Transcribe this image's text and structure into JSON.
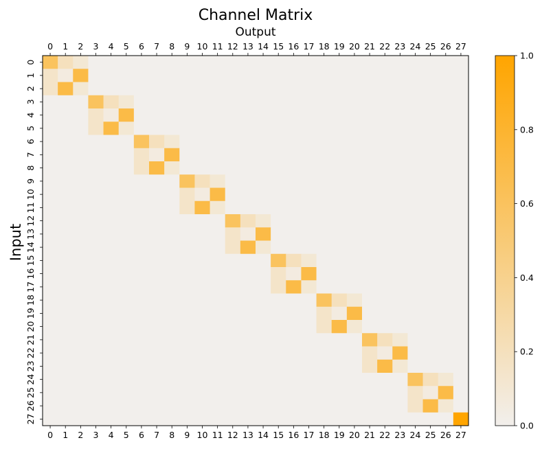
{
  "chart_data": {
    "type": "heatmap",
    "title": "Channel Matrix",
    "xlabel": "Output",
    "ylabel": "Input",
    "x_categories": [
      "0",
      "1",
      "2",
      "3",
      "4",
      "5",
      "6",
      "7",
      "8",
      "9",
      "10",
      "11",
      "12",
      "13",
      "14",
      "15",
      "16",
      "17",
      "18",
      "19",
      "20",
      "21",
      "22",
      "23",
      "24",
      "25",
      "26",
      "27"
    ],
    "y_categories": [
      "0",
      "1",
      "2",
      "3",
      "4",
      "5",
      "6",
      "7",
      "8",
      "9",
      "10",
      "11",
      "12",
      "13",
      "14",
      "15",
      "16",
      "17",
      "18",
      "19",
      "20",
      "21",
      "22",
      "23",
      "24",
      "25",
      "26",
      "27"
    ],
    "x_ticks_position": "top and bottom",
    "values": [
      [
        0.6,
        0.2,
        0.1,
        0,
        0,
        0,
        0,
        0,
        0,
        0,
        0,
        0,
        0,
        0,
        0,
        0,
        0,
        0,
        0,
        0,
        0,
        0,
        0,
        0,
        0,
        0,
        0,
        0
      ],
      [
        0.15,
        0.05,
        0.7,
        0,
        0,
        0,
        0,
        0,
        0,
        0,
        0,
        0,
        0,
        0,
        0,
        0,
        0,
        0,
        0,
        0,
        0,
        0,
        0,
        0,
        0,
        0,
        0,
        0
      ],
      [
        0.15,
        0.7,
        0.1,
        0,
        0,
        0,
        0,
        0,
        0,
        0,
        0,
        0,
        0,
        0,
        0,
        0,
        0,
        0,
        0,
        0,
        0,
        0,
        0,
        0,
        0,
        0,
        0,
        0
      ],
      [
        0,
        0,
        0,
        0.6,
        0.2,
        0.1,
        0,
        0,
        0,
        0,
        0,
        0,
        0,
        0,
        0,
        0,
        0,
        0,
        0,
        0,
        0,
        0,
        0,
        0,
        0,
        0,
        0,
        0
      ],
      [
        0,
        0,
        0,
        0.15,
        0.05,
        0.7,
        0,
        0,
        0,
        0,
        0,
        0,
        0,
        0,
        0,
        0,
        0,
        0,
        0,
        0,
        0,
        0,
        0,
        0,
        0,
        0,
        0,
        0
      ],
      [
        0,
        0,
        0,
        0.15,
        0.7,
        0.1,
        0,
        0,
        0,
        0,
        0,
        0,
        0,
        0,
        0,
        0,
        0,
        0,
        0,
        0,
        0,
        0,
        0,
        0,
        0,
        0,
        0,
        0
      ],
      [
        0,
        0,
        0,
        0,
        0,
        0,
        0.6,
        0.2,
        0.1,
        0,
        0,
        0,
        0,
        0,
        0,
        0,
        0,
        0,
        0,
        0,
        0,
        0,
        0,
        0,
        0,
        0,
        0,
        0
      ],
      [
        0,
        0,
        0,
        0,
        0,
        0,
        0.15,
        0.05,
        0.7,
        0,
        0,
        0,
        0,
        0,
        0,
        0,
        0,
        0,
        0,
        0,
        0,
        0,
        0,
        0,
        0,
        0,
        0,
        0
      ],
      [
        0,
        0,
        0,
        0,
        0,
        0,
        0.15,
        0.7,
        0.1,
        0,
        0,
        0,
        0,
        0,
        0,
        0,
        0,
        0,
        0,
        0,
        0,
        0,
        0,
        0,
        0,
        0,
        0,
        0
      ],
      [
        0,
        0,
        0,
        0,
        0,
        0,
        0,
        0,
        0,
        0.6,
        0.2,
        0.1,
        0,
        0,
        0,
        0,
        0,
        0,
        0,
        0,
        0,
        0,
        0,
        0,
        0,
        0,
        0,
        0
      ],
      [
        0,
        0,
        0,
        0,
        0,
        0,
        0,
        0,
        0,
        0.15,
        0.05,
        0.7,
        0,
        0,
        0,
        0,
        0,
        0,
        0,
        0,
        0,
        0,
        0,
        0,
        0,
        0,
        0,
        0
      ],
      [
        0,
        0,
        0,
        0,
        0,
        0,
        0,
        0,
        0,
        0.15,
        0.7,
        0.1,
        0,
        0,
        0,
        0,
        0,
        0,
        0,
        0,
        0,
        0,
        0,
        0,
        0,
        0,
        0,
        0
      ],
      [
        0,
        0,
        0,
        0,
        0,
        0,
        0,
        0,
        0,
        0,
        0,
        0,
        0.6,
        0.2,
        0.1,
        0,
        0,
        0,
        0,
        0,
        0,
        0,
        0,
        0,
        0,
        0,
        0,
        0
      ],
      [
        0,
        0,
        0,
        0,
        0,
        0,
        0,
        0,
        0,
        0,
        0,
        0,
        0.15,
        0.05,
        0.7,
        0,
        0,
        0,
        0,
        0,
        0,
        0,
        0,
        0,
        0,
        0,
        0,
        0
      ],
      [
        0,
        0,
        0,
        0,
        0,
        0,
        0,
        0,
        0,
        0,
        0,
        0,
        0.15,
        0.7,
        0.1,
        0,
        0,
        0,
        0,
        0,
        0,
        0,
        0,
        0,
        0,
        0,
        0,
        0
      ],
      [
        0,
        0,
        0,
        0,
        0,
        0,
        0,
        0,
        0,
        0,
        0,
        0,
        0,
        0,
        0,
        0.6,
        0.2,
        0.1,
        0,
        0,
        0,
        0,
        0,
        0,
        0,
        0,
        0,
        0
      ],
      [
        0,
        0,
        0,
        0,
        0,
        0,
        0,
        0,
        0,
        0,
        0,
        0,
        0,
        0,
        0,
        0.15,
        0.05,
        0.7,
        0,
        0,
        0,
        0,
        0,
        0,
        0,
        0,
        0,
        0
      ],
      [
        0,
        0,
        0,
        0,
        0,
        0,
        0,
        0,
        0,
        0,
        0,
        0,
        0,
        0,
        0,
        0.15,
        0.7,
        0.1,
        0,
        0,
        0,
        0,
        0,
        0,
        0,
        0,
        0,
        0
      ],
      [
        0,
        0,
        0,
        0,
        0,
        0,
        0,
        0,
        0,
        0,
        0,
        0,
        0,
        0,
        0,
        0,
        0,
        0,
        0.6,
        0.2,
        0.1,
        0,
        0,
        0,
        0,
        0,
        0,
        0
      ],
      [
        0,
        0,
        0,
        0,
        0,
        0,
        0,
        0,
        0,
        0,
        0,
        0,
        0,
        0,
        0,
        0,
        0,
        0,
        0.15,
        0.05,
        0.7,
        0,
        0,
        0,
        0,
        0,
        0,
        0
      ],
      [
        0,
        0,
        0,
        0,
        0,
        0,
        0,
        0,
        0,
        0,
        0,
        0,
        0,
        0,
        0,
        0,
        0,
        0,
        0.15,
        0.7,
        0.1,
        0,
        0,
        0,
        0,
        0,
        0,
        0
      ],
      [
        0,
        0,
        0,
        0,
        0,
        0,
        0,
        0,
        0,
        0,
        0,
        0,
        0,
        0,
        0,
        0,
        0,
        0,
        0,
        0,
        0,
        0.6,
        0.2,
        0.1,
        0,
        0,
        0,
        0
      ],
      [
        0,
        0,
        0,
        0,
        0,
        0,
        0,
        0,
        0,
        0,
        0,
        0,
        0,
        0,
        0,
        0,
        0,
        0,
        0,
        0,
        0,
        0.15,
        0.05,
        0.7,
        0,
        0,
        0,
        0
      ],
      [
        0,
        0,
        0,
        0,
        0,
        0,
        0,
        0,
        0,
        0,
        0,
        0,
        0,
        0,
        0,
        0,
        0,
        0,
        0,
        0,
        0,
        0.15,
        0.7,
        0.1,
        0,
        0,
        0,
        0
      ],
      [
        0,
        0,
        0,
        0,
        0,
        0,
        0,
        0,
        0,
        0,
        0,
        0,
        0,
        0,
        0,
        0,
        0,
        0,
        0,
        0,
        0,
        0,
        0,
        0,
        0.6,
        0.2,
        0.1,
        0
      ],
      [
        0,
        0,
        0,
        0,
        0,
        0,
        0,
        0,
        0,
        0,
        0,
        0,
        0,
        0,
        0,
        0,
        0,
        0,
        0,
        0,
        0,
        0,
        0,
        0,
        0.15,
        0.05,
        0.7,
        0
      ],
      [
        0,
        0,
        0,
        0,
        0,
        0,
        0,
        0,
        0,
        0,
        0,
        0,
        0,
        0,
        0,
        0,
        0,
        0,
        0,
        0,
        0,
        0,
        0,
        0,
        0.15,
        0.7,
        0.1,
        0
      ],
      [
        0,
        0,
        0,
        0,
        0,
        0,
        0,
        0,
        0,
        0,
        0,
        0,
        0,
        0,
        0,
        0,
        0,
        0,
        0,
        0,
        0,
        0,
        0,
        0,
        0,
        0,
        0,
        1.0
      ]
    ],
    "colorbar": {
      "range": [
        0,
        1
      ],
      "ticks": [
        "0.0",
        "0.2",
        "0.4",
        "0.6",
        "0.8",
        "1.0"
      ],
      "color_low": "#f2efec",
      "color_high": "#ffa500"
    },
    "grid": false
  }
}
